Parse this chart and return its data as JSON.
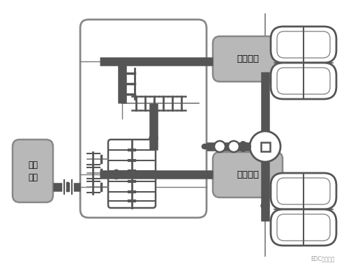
{
  "bg_color": "#ffffff",
  "box_color": "#b8b8b8",
  "box_edge_color": "#888888",
  "dark_gray": "#555555",
  "mid_gray": "#777777",
  "line_color": "#888888",
  "watermark": "EDC电驱未来",
  "label_drive_motor": "驱动电机",
  "label_work_motor": "作业电机",
  "label_work_device": "作业\n装置",
  "figsize": [
    4.93,
    3.87
  ],
  "dpi": 100
}
